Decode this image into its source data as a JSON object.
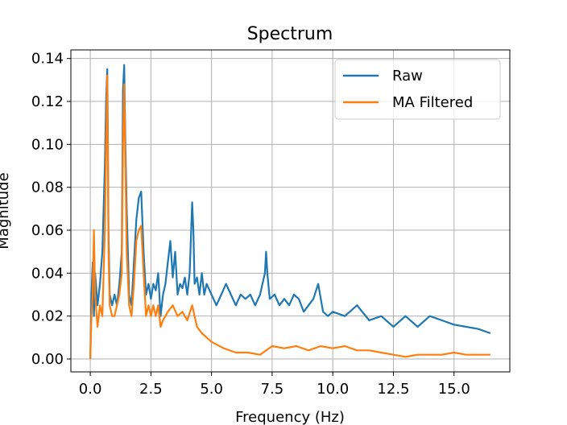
{
  "chart_data": {
    "type": "line",
    "title": "Spectrum",
    "xlabel": "Frequency (Hz)",
    "ylabel": "Magnitude",
    "xlim": [
      -0.8,
      17.3
    ],
    "ylim": [
      -0.006,
      0.144
    ],
    "xticks": [
      0.0,
      2.5,
      5.0,
      7.5,
      10.0,
      12.5,
      15.0
    ],
    "xtick_labels": [
      "0.0",
      "2.5",
      "5.0",
      "7.5",
      "10.0",
      "12.5",
      "15.0"
    ],
    "yticks": [
      0.0,
      0.02,
      0.04,
      0.06,
      0.08,
      0.1,
      0.12,
      0.14
    ],
    "ytick_labels": [
      "0.00",
      "0.02",
      "0.04",
      "0.06",
      "0.08",
      "0.10",
      "0.12",
      "0.14"
    ],
    "grid": true,
    "legend_position": "top-right",
    "series": [
      {
        "name": "Raw",
        "color": "#1f77b4",
        "x": [
          0.0,
          0.05,
          0.1,
          0.15,
          0.2,
          0.3,
          0.4,
          0.5,
          0.6,
          0.65,
          0.7,
          0.72,
          0.75,
          0.8,
          0.9,
          1.0,
          1.1,
          1.2,
          1.3,
          1.35,
          1.4,
          1.45,
          1.5,
          1.6,
          1.7,
          1.8,
          1.9,
          2.0,
          2.1,
          2.2,
          2.3,
          2.4,
          2.5,
          2.6,
          2.7,
          2.8,
          2.9,
          3.0,
          3.1,
          3.2,
          3.3,
          3.4,
          3.5,
          3.6,
          3.7,
          3.8,
          3.9,
          4.0,
          4.1,
          4.2,
          4.25,
          4.3,
          4.4,
          4.5,
          4.6,
          4.7,
          4.8,
          5.0,
          5.2,
          5.4,
          5.6,
          5.8,
          6.0,
          6.2,
          6.4,
          6.6,
          6.8,
          7.0,
          7.2,
          7.25,
          7.3,
          7.4,
          7.6,
          7.8,
          8.0,
          8.2,
          8.4,
          8.6,
          8.8,
          9.0,
          9.2,
          9.4,
          9.6,
          9.8,
          10.0,
          10.5,
          11.0,
          11.5,
          12.0,
          12.5,
          13.0,
          13.5,
          14.0,
          14.5,
          15.0,
          15.5,
          16.0,
          16.5
        ],
        "values": [
          0.0,
          0.03,
          0.045,
          0.02,
          0.04,
          0.025,
          0.035,
          0.05,
          0.09,
          0.12,
          0.135,
          0.11,
          0.06,
          0.03,
          0.025,
          0.03,
          0.025,
          0.035,
          0.05,
          0.125,
          0.137,
          0.1,
          0.07,
          0.03,
          0.025,
          0.045,
          0.065,
          0.075,
          0.078,
          0.05,
          0.03,
          0.035,
          0.028,
          0.035,
          0.032,
          0.04,
          0.02,
          0.03,
          0.035,
          0.045,
          0.055,
          0.038,
          0.05,
          0.03,
          0.035,
          0.033,
          0.038,
          0.03,
          0.04,
          0.073,
          0.06,
          0.035,
          0.038,
          0.03,
          0.04,
          0.03,
          0.035,
          0.03,
          0.025,
          0.03,
          0.035,
          0.03,
          0.025,
          0.03,
          0.028,
          0.03,
          0.025,
          0.03,
          0.04,
          0.05,
          0.04,
          0.028,
          0.03,
          0.025,
          0.028,
          0.025,
          0.03,
          0.028,
          0.022,
          0.025,
          0.028,
          0.035,
          0.022,
          0.02,
          0.022,
          0.02,
          0.025,
          0.018,
          0.02,
          0.015,
          0.02,
          0.015,
          0.02,
          0.018,
          0.016,
          0.015,
          0.014,
          0.012
        ]
      },
      {
        "name": "MA Filtered",
        "color": "#ff7f0e",
        "x": [
          0.0,
          0.05,
          0.1,
          0.15,
          0.2,
          0.3,
          0.4,
          0.5,
          0.6,
          0.65,
          0.7,
          0.72,
          0.75,
          0.8,
          0.9,
          1.0,
          1.1,
          1.2,
          1.3,
          1.35,
          1.4,
          1.45,
          1.5,
          1.6,
          1.7,
          1.8,
          1.9,
          2.0,
          2.1,
          2.2,
          2.3,
          2.4,
          2.5,
          2.6,
          2.7,
          2.8,
          2.9,
          3.0,
          3.2,
          3.4,
          3.6,
          3.8,
          4.0,
          4.2,
          4.4,
          4.6,
          4.8,
          5.0,
          5.5,
          6.0,
          6.5,
          7.0,
          7.5,
          8.0,
          8.5,
          9.0,
          9.5,
          10.0,
          10.5,
          11.0,
          11.5,
          12.0,
          12.5,
          13.0,
          13.5,
          14.0,
          14.5,
          15.0,
          15.5,
          16.0,
          16.5
        ],
        "values": [
          0.0,
          0.02,
          0.03,
          0.06,
          0.03,
          0.015,
          0.025,
          0.02,
          0.06,
          0.1,
          0.132,
          0.1,
          0.05,
          0.025,
          0.02,
          0.02,
          0.025,
          0.03,
          0.04,
          0.1,
          0.128,
          0.09,
          0.05,
          0.025,
          0.02,
          0.035,
          0.055,
          0.06,
          0.062,
          0.04,
          0.02,
          0.025,
          0.02,
          0.025,
          0.02,
          0.025,
          0.015,
          0.018,
          0.022,
          0.025,
          0.02,
          0.022,
          0.018,
          0.025,
          0.015,
          0.012,
          0.01,
          0.008,
          0.005,
          0.003,
          0.003,
          0.002,
          0.006,
          0.005,
          0.006,
          0.004,
          0.006,
          0.005,
          0.006,
          0.004,
          0.004,
          0.003,
          0.002,
          0.001,
          0.002,
          0.002,
          0.002,
          0.003,
          0.002,
          0.002,
          0.002
        ]
      }
    ]
  }
}
